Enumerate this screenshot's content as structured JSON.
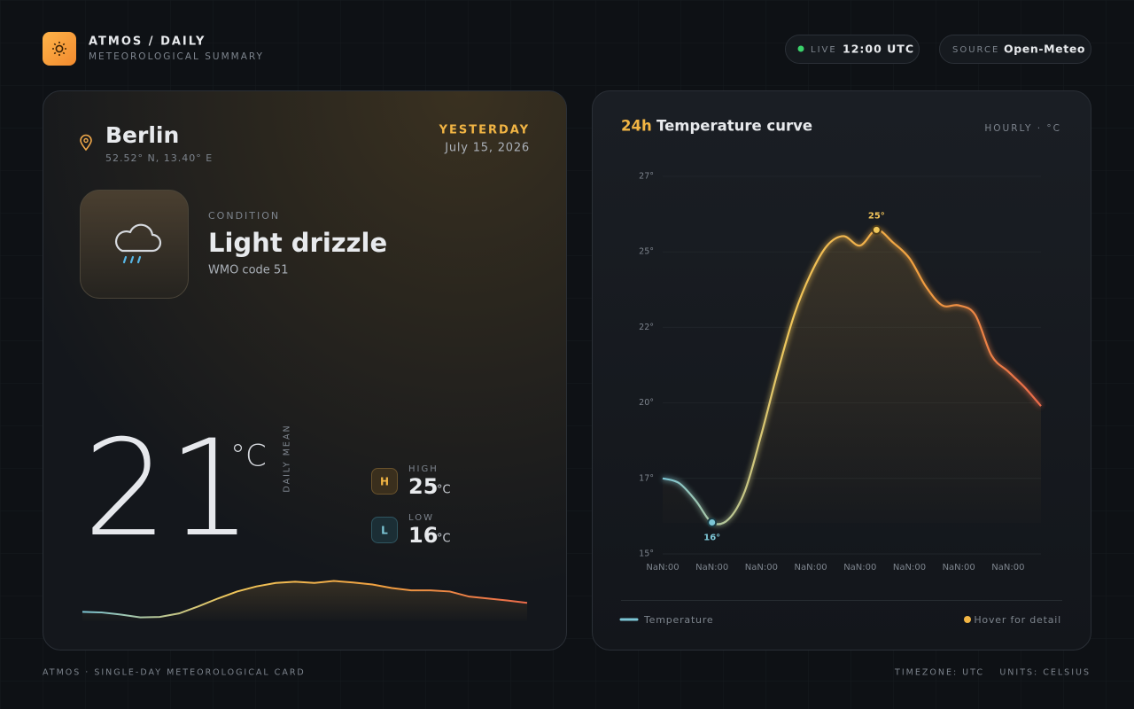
{
  "header": {
    "brand": "ATMOS / DAILY",
    "subtitle": "METEOROLOGICAL SUMMARY",
    "live_label": "LIVE",
    "time": "12:00 UTC",
    "source_label": "SOURCE",
    "source": "Open-Meteo"
  },
  "summary": {
    "city": "Berlin",
    "coords": "52.52° N, 13.40° E",
    "day": "YESTERDAY",
    "date": "July 15, 2026",
    "condition_label": "CONDITION",
    "condition": "Light drizzle",
    "code": "WMO code 51",
    "mean": "21",
    "mean_unit": "°C",
    "mean_label": "DAILY MEAN",
    "high_badge": "H",
    "high_label": "HIGH",
    "high": "25",
    "high_unit": "°C",
    "low_badge": "L",
    "low_label": "LOW",
    "low": "16",
    "low_unit": "°C"
  },
  "chart_data": {
    "type": "line",
    "title_prefix": "24h",
    "title": "Temperature curve",
    "subtitle": "HOURLY · °C",
    "categories": [
      "NaN:00",
      null,
      null,
      "NaN:00",
      null,
      null,
      "NaN:00",
      null,
      null,
      "NaN:00",
      null,
      null,
      "NaN:00",
      null,
      null,
      "NaN:00",
      null,
      null,
      "NaN:00",
      null,
      null,
      "NaN:00",
      null,
      null
    ],
    "series": [
      {
        "name": "Temperature",
        "colors": [
          "#7cc6d6",
          "#f0c75a",
          "#f0a040",
          "#ea6a4a"
        ],
        "values": [
          17.4,
          17.25,
          16.7,
          16.0,
          16.1,
          17.0,
          18.8,
          20.8,
          22.6,
          23.9,
          24.8,
          25.1,
          24.8,
          25.3,
          24.9,
          24.4,
          23.5,
          22.9,
          22.9,
          22.6,
          21.3,
          20.8,
          20.3,
          19.7
        ]
      }
    ],
    "ylim": [
      15,
      27
    ],
    "yticks": [
      {
        "value": 15,
        "label": "15°"
      },
      {
        "value": 17.4,
        "label": "17°"
      },
      {
        "value": 19.8,
        "label": "20°"
      },
      {
        "value": 22.2,
        "label": "22°"
      },
      {
        "value": 24.6,
        "label": "25°"
      },
      {
        "value": 27,
        "label": "27°"
      }
    ],
    "grid": true,
    "max_label": "25°",
    "min_label": "16°",
    "legend_hint": "Hover for detail"
  },
  "footer": {
    "left": "ATMOS · SINGLE-DAY METEOROLOGICAL CARD",
    "timezone": "TIMEZONE: UTC",
    "units": "UNITS: CELSIUS"
  }
}
